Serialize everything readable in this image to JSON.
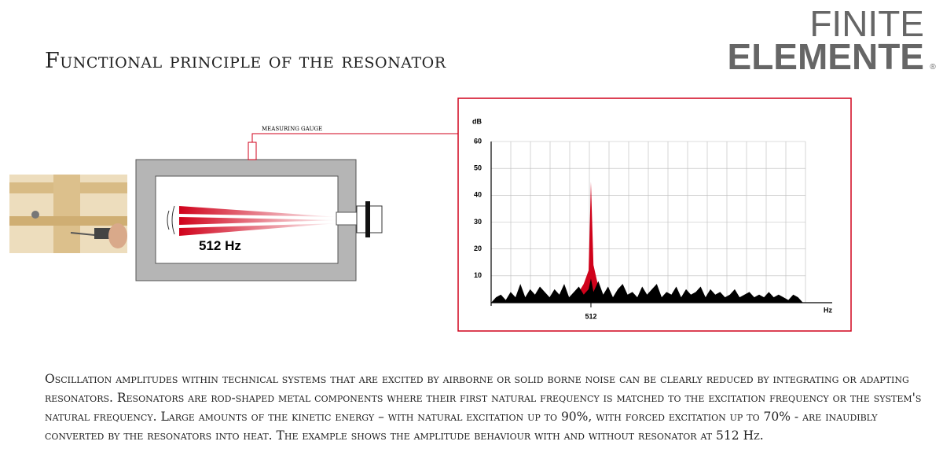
{
  "header": {
    "title": "Functional principle of the resonator",
    "logo_top": "FINITE",
    "logo_bottom": "ELEMENTE",
    "logo_mark": "®"
  },
  "diagram": {
    "gauge_label": "MEASURING GAUGE",
    "frequency_label": "512 Hz"
  },
  "chart_data": {
    "type": "area",
    "y_label": "dB",
    "x_label": "Hz",
    "x": [
      0,
      25,
      50,
      75,
      100,
      125,
      150,
      175,
      200,
      225,
      250,
      275,
      300,
      325,
      350,
      375,
      400,
      425,
      450,
      475,
      500,
      512,
      525,
      550,
      575,
      600,
      625,
      650,
      675,
      700,
      725,
      750,
      775,
      800,
      825,
      850,
      875,
      900,
      925,
      950,
      975,
      1000,
      1025,
      1050,
      1075,
      1100,
      1125,
      1150,
      1175,
      1200,
      1225,
      1250,
      1275,
      1300,
      1325,
      1350,
      1375,
      1400,
      1425,
      1450,
      1475,
      1500,
      1525,
      1550,
      1575,
      1600
    ],
    "series": [
      {
        "color": "#d0021b",
        "values": [
          null,
          null,
          null,
          null,
          null,
          null,
          null,
          null,
          null,
          null,
          null,
          null,
          null,
          null,
          null,
          null,
          null,
          null,
          4,
          7,
          12,
          45,
          14,
          6,
          null,
          null,
          null,
          null,
          null,
          null,
          null,
          null,
          null,
          null,
          null,
          null,
          null,
          null,
          null,
          null,
          null,
          null,
          null,
          null,
          null,
          null,
          null,
          null,
          null,
          null,
          null,
          null,
          null,
          null,
          null,
          null,
          null,
          null,
          null,
          null,
          null,
          null,
          null,
          null,
          null,
          null
        ]
      },
      {
        "color": "#000000",
        "values": [
          0,
          2,
          3,
          1,
          4,
          2,
          7,
          2,
          5,
          3,
          6,
          4,
          2,
          5,
          3,
          7,
          2,
          4,
          6,
          3,
          5,
          9,
          4,
          8,
          3,
          6,
          2,
          5,
          7,
          3,
          4,
          2,
          6,
          3,
          5,
          7,
          2,
          4,
          3,
          6,
          2,
          5,
          3,
          4,
          6,
          2,
          5,
          3,
          4,
          2,
          3,
          5,
          2,
          3,
          4,
          2,
          3,
          2,
          4,
          2,
          3,
          2,
          1,
          3,
          2,
          0
        ]
      }
    ],
    "xlim": [
      0,
      1750
    ],
    "xticks": [
      {
        "value": 512,
        "label": "512"
      }
    ],
    "ylim": [
      0,
      60
    ],
    "yticks": [
      10,
      20,
      30,
      40,
      50,
      60
    ],
    "grid": true
  },
  "body": {
    "text": "Oscillation amplitudes within technical systems that are excited by airborne or solid borne noise can be clearly reduced by integrating or adapting resonators. Resonators are rod-shaped metal components where their first natural frequency is matched to the excitation frequency or the system's natural frequency. Large amounts of the kinetic energy – with natural excitation up to 90%, with forced excitation up to 70% - are inaudibly converted by the resonators into heat. The example shows the amplitude behaviour with and without resonator at 512 Hz."
  }
}
